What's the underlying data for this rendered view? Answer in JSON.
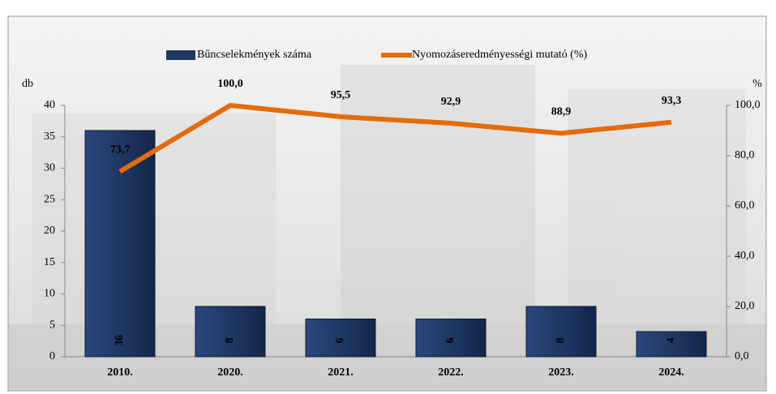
{
  "chart_data": {
    "type": "bar",
    "categories": [
      "2010.",
      "2020.",
      "2021.",
      "2022.",
      "2023.",
      "2024."
    ],
    "series": [
      {
        "name": "Bűncselekmények száma",
        "type": "bar",
        "color": "#1f3864",
        "values": [
          36,
          8,
          6,
          6,
          8,
          4
        ]
      },
      {
        "name": "Nyomozáseredményességi mutató (%)",
        "type": "line",
        "axis": "y2",
        "color": "#e36c0a",
        "values": [
          73.7,
          100.0,
          95.5,
          92.9,
          88.9,
          93.3
        ],
        "value_labels": [
          "73,7",
          "100,0",
          "95,5",
          "92,9",
          "88,9",
          "93,3"
        ]
      }
    ],
    "ylabel": "db",
    "y2label": "%",
    "ylim": [
      0,
      40
    ],
    "yticks": [
      0,
      5,
      10,
      15,
      20,
      25,
      30,
      35,
      40
    ],
    "y2lim": [
      0,
      100
    ],
    "y2ticks": [
      {
        "value": 0,
        "label": "0,0"
      },
      {
        "value": 20,
        "label": "20,0"
      },
      {
        "value": 40,
        "label": "40,0"
      },
      {
        "value": 60,
        "label": "60,0"
      },
      {
        "value": 80,
        "label": "80,0"
      },
      {
        "value": 100,
        "label": "100,0"
      }
    ],
    "legend": "top"
  }
}
